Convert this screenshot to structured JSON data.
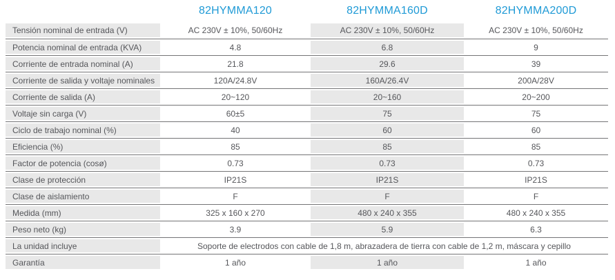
{
  "colors": {
    "accent_blue": "#1f9ad6",
    "row_shade": "#e8e8e8",
    "divider": "#747476",
    "text": "#55565a"
  },
  "table": {
    "columns": [
      "82HYMMA120",
      "82HYMMA160D",
      "82HYMMA200D"
    ],
    "rows": [
      {
        "label": "Tensión nominal de entrada (V)",
        "values": [
          "AC 230V ± 10%, 50/60Hz",
          "AC 230V ± 10%, 50/60Hz",
          "AC 230V ± 10%, 50/60Hz"
        ]
      },
      {
        "label": "Potencia nominal de entrada (KVA)",
        "values": [
          "4.8",
          "6.8",
          "9"
        ]
      },
      {
        "label": "Corriente de entrada nominal (A)",
        "values": [
          "21.8",
          "29.6",
          "39"
        ]
      },
      {
        "label": "Corriente de salida y voltaje nominales",
        "values": [
          "120A/24.8V",
          "160A/26.4V",
          "200A/28V"
        ]
      },
      {
        "label": "Corriente de salida (A)",
        "values": [
          "20~120",
          "20~160",
          "20~200"
        ]
      },
      {
        "label": "Voltaje sin carga (V)",
        "values": [
          "60±5",
          "75",
          "75"
        ]
      },
      {
        "label": "Ciclo de trabajo nominal (%)",
        "values": [
          "40",
          "60",
          "60"
        ]
      },
      {
        "label": "Eficiencia (%)",
        "values": [
          "85",
          "85",
          "85"
        ]
      },
      {
        "label": "Factor de potencia (cosø)",
        "values": [
          "0.73",
          "0.73",
          "0.73"
        ]
      },
      {
        "label": "Clase de protección",
        "values": [
          "IP21S",
          "IP21S",
          "IP21S"
        ]
      },
      {
        "label": "Clase de aislamiento",
        "values": [
          "F",
          "F",
          "F"
        ]
      },
      {
        "label": "Medida (mm)",
        "values": [
          "325 x 160 x 270",
          "480 x 240 x 355",
          "480 x 240 x 355"
        ]
      },
      {
        "label": "Peso neto (kg)",
        "values": [
          "3.9",
          "5.9",
          "6.3"
        ]
      },
      {
        "label": "La unidad incluye",
        "span_value": "Soporte de electrodos con cable de 1,8 m, abrazadera de tierra con cable de 1,2 m, máscara y cepillo"
      },
      {
        "label": "Garantía",
        "values": [
          "1 año",
          "1 año",
          "1 año"
        ]
      }
    ]
  }
}
